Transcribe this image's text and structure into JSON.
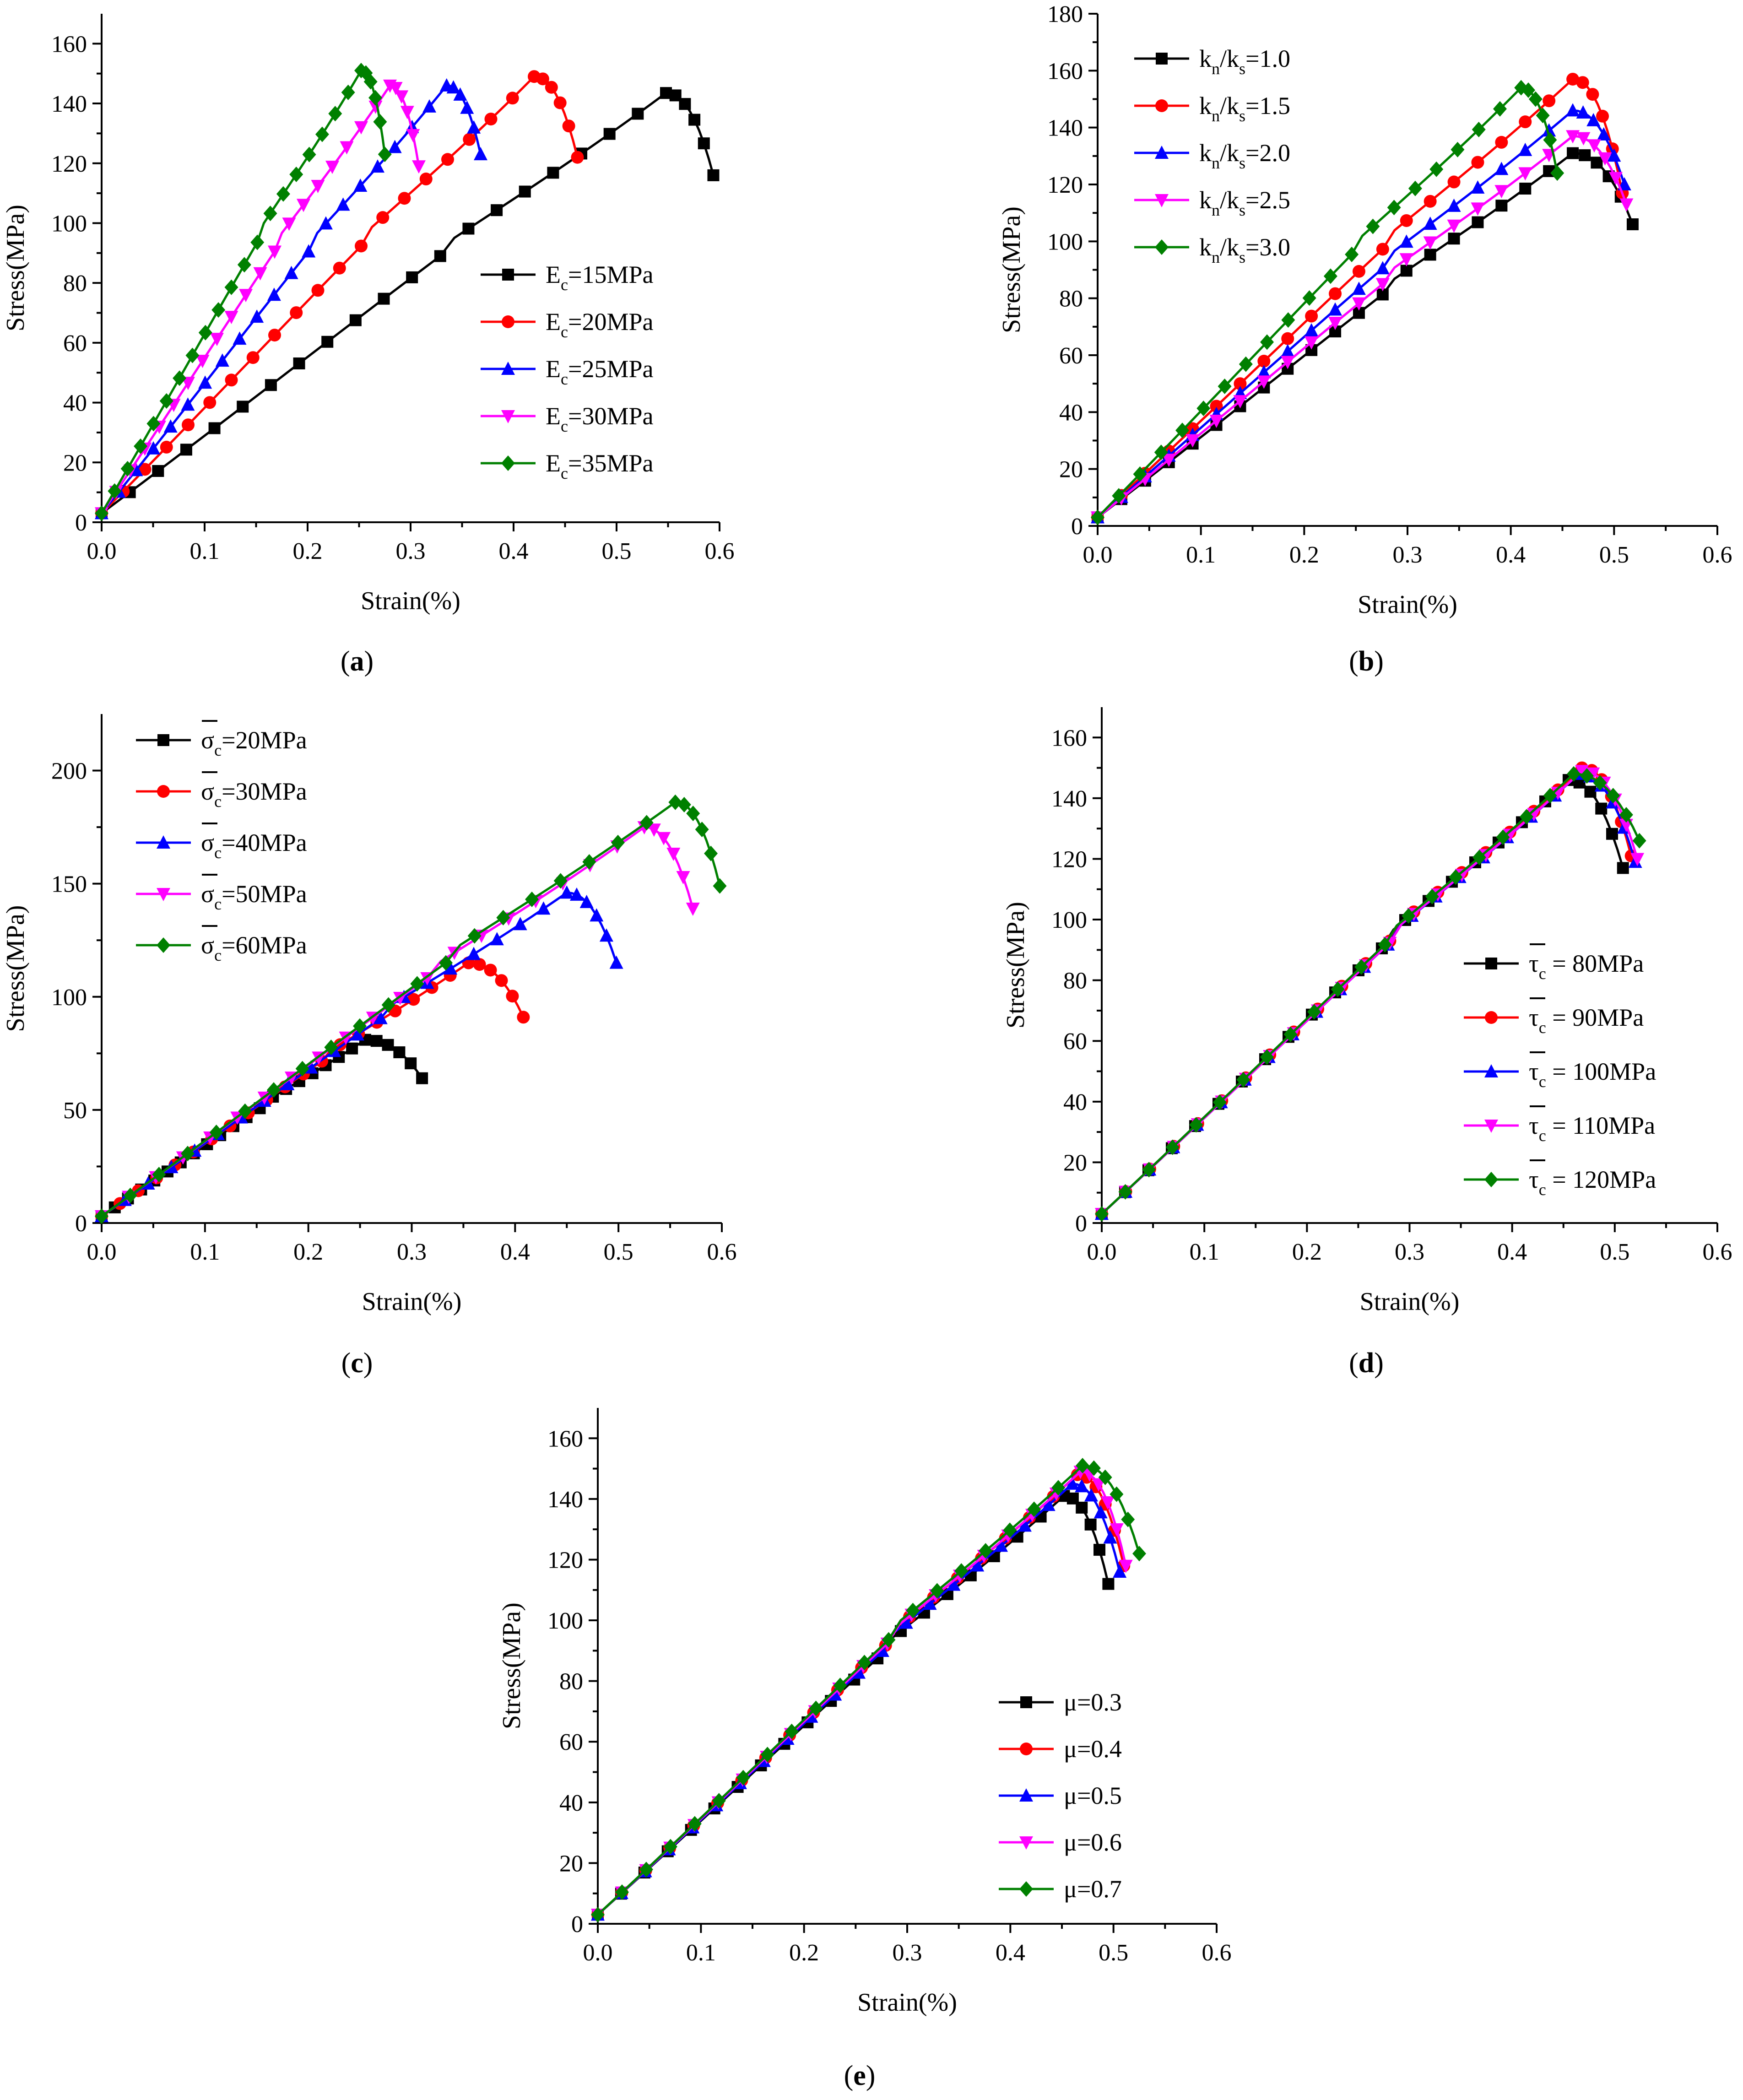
{
  "chart_data": [
    {
      "panel": "(a)",
      "type": "line",
      "xlabel": "Strain(%)",
      "ylabel": "Stress(MPa)",
      "xlim": [
        0,
        0.6
      ],
      "ylim": [
        0,
        170
      ],
      "xticks": [
        "0.0",
        "0.1",
        "0.2",
        "0.3",
        "0.4",
        "0.5",
        "0.6"
      ],
      "yticks": [
        "0",
        "20",
        "40",
        "60",
        "80",
        "100",
        "120",
        "140",
        "160"
      ],
      "legend_position": "center-right",
      "series": [
        {
          "name": "Ec=15MPa",
          "legend": {
            "base": "E",
            "sub": "c",
            "rest": "=15MPa"
          },
          "color": "#000000",
          "marker": "square",
          "peak_x": 0.548,
          "peak_y": 143.5,
          "end_x": 0.594,
          "end_y": 116
        },
        {
          "name": "Ec=20MPa",
          "legend": {
            "base": "E",
            "sub": "c",
            "rest": "=20MPa"
          },
          "color": "#ff0000",
          "marker": "circle",
          "peak_x": 0.42,
          "peak_y": 149,
          "end_x": 0.462,
          "end_y": 122
        },
        {
          "name": "Ec=25MPa",
          "legend": {
            "base": "E",
            "sub": "c",
            "rest": "=25MPa"
          },
          "color": "#0000ff",
          "marker": "triangle-up",
          "peak_x": 0.335,
          "peak_y": 146,
          "end_x": 0.368,
          "end_y": 123
        },
        {
          "name": "Ec=30MPa",
          "legend": {
            "base": "E",
            "sub": "c",
            "rest": "=30MPa"
          },
          "color": "#ff00ff",
          "marker": "triangle-down",
          "peak_x": 0.28,
          "peak_y": 146,
          "end_x": 0.308,
          "end_y": 119
        },
        {
          "name": "Ec=35MPa",
          "legend": {
            "base": "E",
            "sub": "c",
            "rest": "=35MPa"
          },
          "color": "#008000",
          "marker": "diamond",
          "peak_x": 0.252,
          "peak_y": 151,
          "end_x": 0.275,
          "end_y": 123
        }
      ]
    },
    {
      "panel": "(b)",
      "type": "line",
      "xlabel": "Strain(%)",
      "ylabel": "Stress(MPa)",
      "xlim": [
        0,
        0.6
      ],
      "ylim": [
        0,
        180
      ],
      "xticks": [
        "0.0",
        "0.1",
        "0.2",
        "0.3",
        "0.4",
        "0.5",
        "0.6"
      ],
      "yticks": [
        "0",
        "20",
        "40",
        "60",
        "80",
        "100",
        "120",
        "140",
        "160",
        "180"
      ],
      "legend_position": "top-left",
      "series": [
        {
          "name": "kn/ks=1.0",
          "legend": {
            "base": "k",
            "sub": "n",
            "mid": "/k",
            "sub2": "s",
            "rest": "=1.0"
          },
          "color": "#000000",
          "marker": "square",
          "peak_x": 0.46,
          "peak_y": 131,
          "end_x": 0.518,
          "end_y": 106
        },
        {
          "name": "kn/ks=1.5",
          "legend": {
            "base": "k",
            "sub": "n",
            "mid": "/k",
            "sub2": "s",
            "rest": "=1.5"
          },
          "color": "#ff0000",
          "marker": "circle",
          "peak_x": 0.46,
          "peak_y": 157,
          "end_x": 0.508,
          "end_y": 117
        },
        {
          "name": "kn/ks=2.0",
          "legend": {
            "base": "k",
            "sub": "n",
            "mid": "/k",
            "sub2": "s",
            "rest": "=2.0"
          },
          "color": "#0000ff",
          "marker": "triangle-up",
          "peak_x": 0.46,
          "peak_y": 146,
          "end_x": 0.51,
          "end_y": 120
        },
        {
          "name": "kn/ks=2.5",
          "legend": {
            "base": "k",
            "sub": "n",
            "mid": "/k",
            "sub2": "s",
            "rest": "=2.5"
          },
          "color": "#ff00ff",
          "marker": "triangle-down",
          "peak_x": 0.46,
          "peak_y": 137,
          "end_x": 0.512,
          "end_y": 113
        },
        {
          "name": "kn/ks=3.0",
          "legend": {
            "base": "k",
            "sub": "n",
            "mid": "/k",
            "sub2": "s",
            "rest": "=3.0"
          },
          "color": "#008000",
          "marker": "diamond",
          "peak_x": 0.41,
          "peak_y": 154,
          "end_x": 0.445,
          "end_y": 124
        }
      ]
    },
    {
      "panel": "(c)",
      "type": "line",
      "xlabel": "Strain(%)",
      "ylabel": "Stress(MPa)",
      "xlim": [
        0,
        0.6
      ],
      "ylim": [
        0,
        225
      ],
      "xticks": [
        "0.0",
        "0.1",
        "0.2",
        "0.3",
        "0.4",
        "0.5",
        "0.6"
      ],
      "yticks": [
        "0",
        "50",
        "100",
        "150",
        "200"
      ],
      "legend_position": "top-left",
      "series": [
        {
          "name": "σc=20MPa",
          "legend": {
            "base": "σ",
            "sub": "c",
            "rest": "=20MPa",
            "overbar": true
          },
          "color": "#000000",
          "marker": "square",
          "peak_x": 0.255,
          "peak_y": 81,
          "end_x": 0.31,
          "end_y": 64
        },
        {
          "name": "σc=30MPa",
          "legend": {
            "base": "σ",
            "sub": "c",
            "rest": "=30MPa",
            "overbar": true
          },
          "color": "#ff0000",
          "marker": "circle",
          "peak_x": 0.355,
          "peak_y": 115,
          "end_x": 0.408,
          "end_y": 91
        },
        {
          "name": "σc=40MPa",
          "legend": {
            "base": "σ",
            "sub": "c",
            "rest": "=40MPa",
            "overbar": true
          },
          "color": "#0000ff",
          "marker": "triangle-up",
          "peak_x": 0.45,
          "peak_y": 146,
          "end_x": 0.498,
          "end_y": 115
        },
        {
          "name": "σc=50MPa",
          "legend": {
            "base": "σ",
            "sub": "c",
            "rest": "=50MPa",
            "overbar": true
          },
          "color": "#ff00ff",
          "marker": "triangle-down",
          "peak_x": 0.525,
          "peak_y": 175,
          "end_x": 0.572,
          "end_y": 139
        },
        {
          "name": "σc=60MPa",
          "legend": {
            "base": "σ",
            "sub": "c",
            "rest": "=60MPa",
            "overbar": true
          },
          "color": "#008000",
          "marker": "diamond",
          "peak_x": 0.555,
          "peak_y": 186,
          "end_x": 0.598,
          "end_y": 149
        }
      ]
    },
    {
      "panel": "(d)",
      "type": "line",
      "xlabel": "Strain(%)",
      "ylabel": "Stress(MPa)",
      "xlim": [
        0,
        0.6
      ],
      "ylim": [
        0,
        170
      ],
      "xticks": [
        "0.0",
        "0.1",
        "0.2",
        "0.3",
        "0.4",
        "0.5",
        "0.6"
      ],
      "yticks": [
        "0",
        "20",
        "40",
        "60",
        "80",
        "100",
        "120",
        "140",
        "160"
      ],
      "legend_position": "center-right",
      "series": [
        {
          "name": "τc = 80MPa",
          "legend": {
            "base": "τ",
            "sub": "c",
            "rest": " = 80MPa",
            "overbar": true
          },
          "color": "#000000",
          "marker": "square",
          "peak_x": 0.455,
          "peak_y": 146,
          "end_x": 0.508,
          "end_y": 117
        },
        {
          "name": "τc = 90MPa",
          "legend": {
            "base": "τ",
            "sub": "c",
            "rest": " = 90MPa",
            "overbar": true
          },
          "color": "#ff0000",
          "marker": "circle",
          "peak_x": 0.468,
          "peak_y": 150,
          "end_x": 0.516,
          "end_y": 121
        },
        {
          "name": "τc = 100MPa",
          "legend": {
            "base": "τ",
            "sub": "c",
            "rest": " = 100MPa",
            "overbar": true
          },
          "color": "#0000ff",
          "marker": "triangle-up",
          "peak_x": 0.465,
          "peak_y": 148,
          "end_x": 0.52,
          "end_y": 119
        },
        {
          "name": "τc = 110MPa",
          "legend": {
            "base": "τ",
            "sub": "c",
            "rest": " = 110MPa",
            "overbar": true
          },
          "color": "#ff00ff",
          "marker": "triangle-down",
          "peak_x": 0.468,
          "peak_y": 149,
          "end_x": 0.522,
          "end_y": 120
        },
        {
          "name": "τc = 120MPa",
          "legend": {
            "base": "τ",
            "sub": "c",
            "rest": " = 120MPa",
            "overbar": true
          },
          "color": "#008000",
          "marker": "diamond",
          "peak_x": 0.46,
          "peak_y": 148,
          "end_x": 0.524,
          "end_y": 126
        }
      ]
    },
    {
      "panel": "(e)",
      "type": "line",
      "xlabel": "Strain(%)",
      "ylabel": "Stress(MPa)",
      "xlim": [
        0,
        0.6
      ],
      "ylim": [
        0,
        170
      ],
      "xticks": [
        "0.0",
        "0.1",
        "0.2",
        "0.3",
        "0.4",
        "0.5",
        "0.6"
      ],
      "yticks": [
        "0",
        "20",
        "40",
        "60",
        "80",
        "100",
        "120",
        "140",
        "160"
      ],
      "legend_position": "center-right",
      "series": [
        {
          "name": "μ=0.3",
          "legend": {
            "base": "μ=0.3"
          },
          "color": "#000000",
          "marker": "square",
          "peak_x": 0.452,
          "peak_y": 141,
          "end_x": 0.495,
          "end_y": 112
        },
        {
          "name": "μ=0.4",
          "legend": {
            "base": "μ=0.4"
          },
          "color": "#ff0000",
          "marker": "circle",
          "peak_x": 0.465,
          "peak_y": 148,
          "end_x": 0.51,
          "end_y": 118
        },
        {
          "name": "μ=0.5",
          "legend": {
            "base": "μ=0.5"
          },
          "color": "#0000ff",
          "marker": "triangle-up",
          "peak_x": 0.46,
          "peak_y": 145,
          "end_x": 0.506,
          "end_y": 116
        },
        {
          "name": "μ=0.6",
          "legend": {
            "base": "μ=0.6"
          },
          "color": "#ff00ff",
          "marker": "triangle-down",
          "peak_x": 0.468,
          "peak_y": 149,
          "end_x": 0.512,
          "end_y": 118
        },
        {
          "name": "μ=0.7",
          "legend": {
            "base": "μ=0.7"
          },
          "color": "#008000",
          "marker": "diamond",
          "peak_x": 0.47,
          "peak_y": 151,
          "end_x": 0.525,
          "end_y": 122
        }
      ]
    }
  ]
}
